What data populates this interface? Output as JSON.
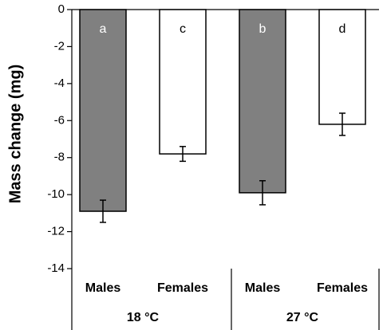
{
  "chart_data": {
    "type": "bar",
    "title": "",
    "ylabel": "Mass change (mg)",
    "xlabel": "",
    "ylim": [
      -14,
      0
    ],
    "yticks": [
      0,
      -2,
      -4,
      -6,
      -8,
      -10,
      -12,
      -14
    ],
    "grid": false,
    "legend": "none",
    "categories": [
      "Males",
      "Females",
      "Males",
      "Females"
    ],
    "groups": [
      {
        "label": "18 °C",
        "categories": [
          0,
          1
        ]
      },
      {
        "label": "27 °C",
        "categories": [
          2,
          3
        ]
      }
    ],
    "values": [
      -10.9,
      -7.8,
      -9.9,
      -6.2
    ],
    "errors": [
      0.6,
      0.4,
      0.65,
      0.6
    ],
    "significance_labels": [
      "a",
      "c",
      "b",
      "d"
    ],
    "bar_fill": [
      "#808080",
      "#ffffff",
      "#808080",
      "#ffffff"
    ],
    "sig_label_colors": [
      "#ffffff",
      "#000000",
      "#ffffff",
      "#000000"
    ]
  }
}
